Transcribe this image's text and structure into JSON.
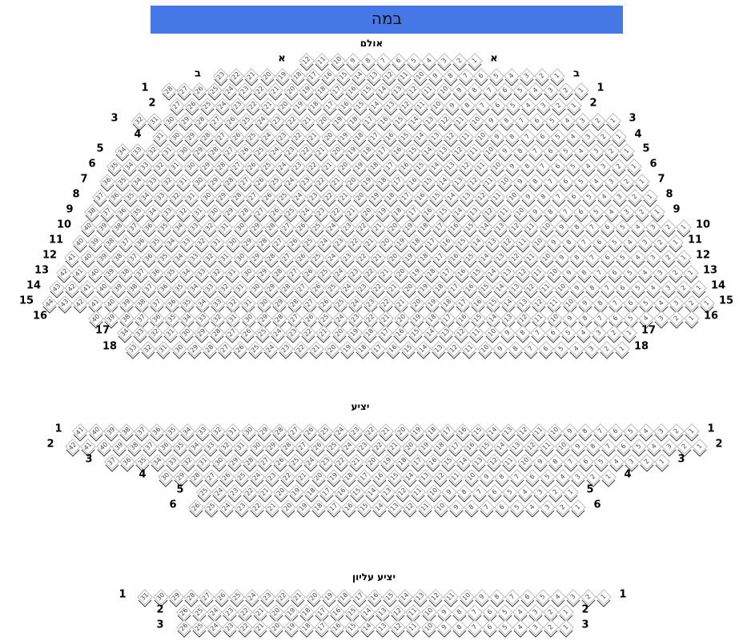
{
  "stage": {
    "label": "במה"
  },
  "colors": {
    "stage": "#4677e6",
    "seat_fill": "#ffffff",
    "seat_border": "#bbbbbb"
  },
  "sections": [
    {
      "title": "אולם",
      "rows": [
        {
          "label": "א",
          "count": 12
        },
        {
          "label": "ב",
          "count": 23
        },
        {
          "label": "1",
          "count": 28
        },
        {
          "label": "2",
          "count": 27
        },
        {
          "label": "3",
          "count": 32
        },
        {
          "label": "4",
          "count": 31
        },
        {
          "label": "5",
          "count": 34
        },
        {
          "label": "6",
          "count": 35
        },
        {
          "label": "7",
          "count": 36
        },
        {
          "label": "8",
          "count": 37
        },
        {
          "label": "9",
          "count": 38
        },
        {
          "label": "10",
          "count": 40
        },
        {
          "label": "11",
          "count": 40
        },
        {
          "label": "12",
          "count": 41
        },
        {
          "label": "13",
          "count": 42
        },
        {
          "label": "14",
          "count": 43
        },
        {
          "label": "15",
          "count": 44
        },
        {
          "label": "16",
          "count": 40
        },
        {
          "label": "17",
          "count": 34
        },
        {
          "label": "18",
          "count": 33
        }
      ]
    },
    {
      "title": "יציע",
      "rows": [
        {
          "label": "1",
          "count": 41
        },
        {
          "label": "2",
          "count": 42
        },
        {
          "label": "3",
          "count": 37
        },
        {
          "label": "4",
          "count": 30
        },
        {
          "label": "5",
          "count": 25
        },
        {
          "label": "6",
          "count": 26
        }
      ]
    },
    {
      "title": "יציע עליון",
      "rows": [
        {
          "label": "1",
          "count": 31
        },
        {
          "label": "2",
          "count": 26
        },
        {
          "label": "3",
          "count": 26
        }
      ]
    }
  ]
}
